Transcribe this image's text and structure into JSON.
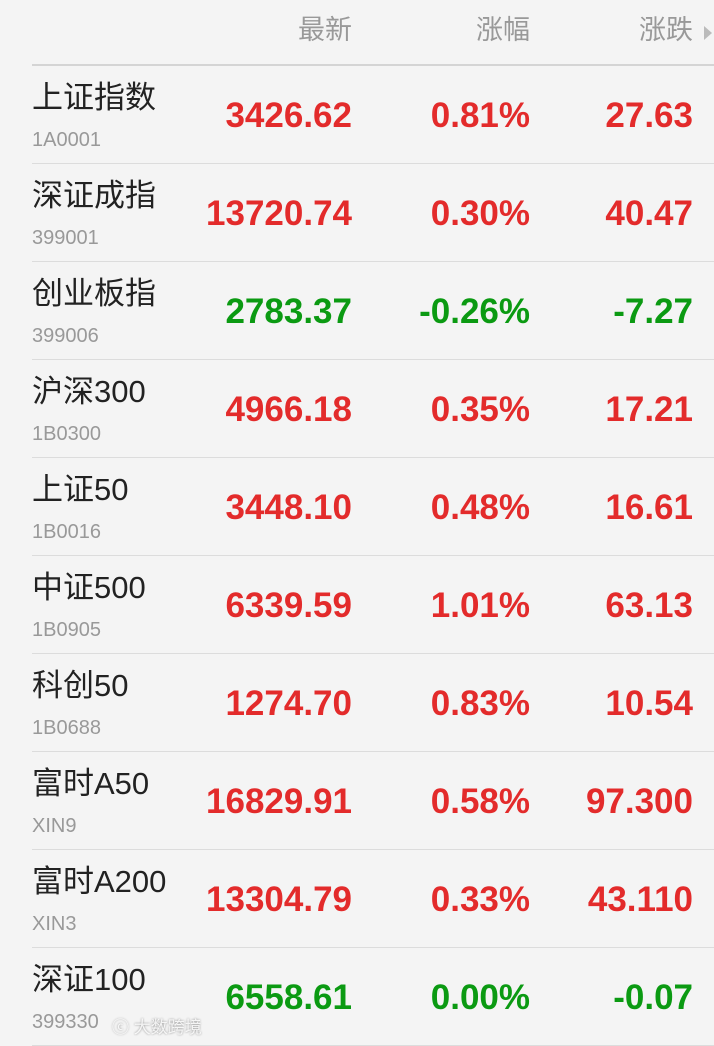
{
  "colors": {
    "up": "#e32b2b",
    "down": "#0b9a12",
    "header": "#999999"
  },
  "header": {
    "latest": "最新",
    "change_pct": "涨幅",
    "change": "涨跌",
    "sort_icon": "triangle-right-icon"
  },
  "rows": [
    {
      "name": "上证指数",
      "code": "1A0001",
      "latest": "3426.62",
      "pct": "0.81%",
      "chg": "27.63",
      "dir": "up"
    },
    {
      "name": "深证成指",
      "code": "399001",
      "latest": "13720.74",
      "pct": "0.30%",
      "chg": "40.47",
      "dir": "up"
    },
    {
      "name": "创业板指",
      "code": "399006",
      "latest": "2783.37",
      "pct": "-0.26%",
      "chg": "-7.27",
      "dir": "down"
    },
    {
      "name": "沪深300",
      "code": "1B0300",
      "latest": "4966.18",
      "pct": "0.35%",
      "chg": "17.21",
      "dir": "up"
    },
    {
      "name": "上证50",
      "code": "1B0016",
      "latest": "3448.10",
      "pct": "0.48%",
      "chg": "16.61",
      "dir": "up"
    },
    {
      "name": "中证500",
      "code": "1B0905",
      "latest": "6339.59",
      "pct": "1.01%",
      "chg": "63.13",
      "dir": "up"
    },
    {
      "name": "科创50",
      "code": "1B0688",
      "latest": "1274.70",
      "pct": "0.83%",
      "chg": "10.54",
      "dir": "up"
    },
    {
      "name": "富时A50",
      "code": "XIN9",
      "latest": "16829.91",
      "pct": "0.58%",
      "chg": "97.300",
      "dir": "up"
    },
    {
      "name": "富时A200",
      "code": "XIN3",
      "latest": "13304.79",
      "pct": "0.33%",
      "chg": "43.110",
      "dir": "up"
    },
    {
      "name": "深证100",
      "code": "399330",
      "latest": "6558.61",
      "pct": "0.00%",
      "chg": "-0.07",
      "dir": "down"
    }
  ],
  "watermark": "大数跨境"
}
